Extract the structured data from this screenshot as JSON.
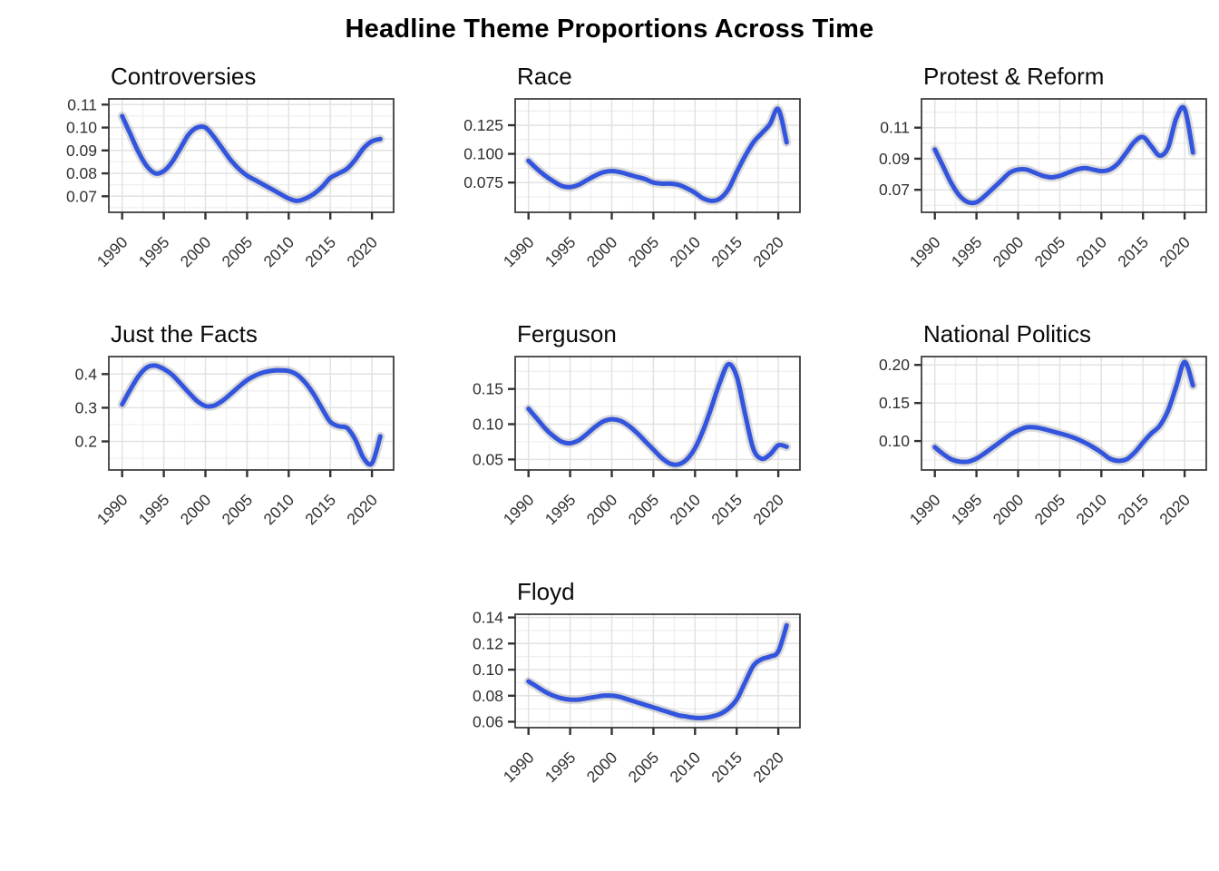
{
  "title": "Headline Theme Proportions Across Time",
  "style": {
    "line_color": "#3355DD",
    "ribbon_color": "#BDBDBD",
    "grid_major_color": "#E2E2E2",
    "grid_minor_color": "#EFEFEF",
    "panel_border_color": "#3F3F3F",
    "tick_color": "#333333",
    "axis_text_color": "#303030",
    "panel_background": "#FFFFFF"
  },
  "x_axis": {
    "years": [
      1990,
      1991,
      1992,
      1993,
      1994,
      1995,
      1996,
      1997,
      1998,
      1999,
      2000,
      2001,
      2002,
      2003,
      2004,
      2005,
      2006,
      2007,
      2008,
      2009,
      2010,
      2011,
      2012,
      2013,
      2014,
      2015,
      2016,
      2017,
      2018,
      2019,
      2020,
      2021
    ],
    "xlim": [
      1988.4,
      2022.6
    ],
    "xticks": [
      1990,
      1995,
      2000,
      2005,
      2010,
      2015,
      2020
    ],
    "xtick_labels": [
      "1990",
      "1995",
      "2000",
      "2005",
      "2010",
      "2015",
      "2020"
    ],
    "xminor": [
      1992.5,
      1997.5,
      2002.5,
      2007.5,
      2012.5,
      2017.5,
      2022.5
    ]
  },
  "chart_data": [
    {
      "id": "controversies",
      "type": "line",
      "title": "Controversies",
      "grid_row": 1,
      "grid_col": 1,
      "y": [
        0.105,
        0.097,
        0.089,
        0.083,
        0.08,
        0.081,
        0.085,
        0.091,
        0.097,
        0.1,
        0.1,
        0.096,
        0.091,
        0.086,
        0.082,
        0.079,
        0.077,
        0.075,
        0.073,
        0.071,
        0.069,
        0.068,
        0.069,
        0.071,
        0.074,
        0.078,
        0.08,
        0.082,
        0.086,
        0.091,
        0.094,
        0.095
      ],
      "ylim": [
        0.063,
        0.1125
      ],
      "yticks": [
        0.07,
        0.08,
        0.09,
        0.1,
        0.11
      ],
      "ytick_labels": [
        "0.07",
        "0.08",
        "0.09",
        "0.10",
        "0.11"
      ],
      "yminor": [
        0.065,
        0.075,
        0.085,
        0.095,
        0.105
      ]
    },
    {
      "id": "race",
      "type": "line",
      "title": "Race",
      "grid_row": 1,
      "grid_col": 2,
      "y": [
        0.094,
        0.087,
        0.081,
        0.076,
        0.072,
        0.071,
        0.073,
        0.077,
        0.081,
        0.084,
        0.085,
        0.084,
        0.082,
        0.08,
        0.078,
        0.075,
        0.074,
        0.074,
        0.073,
        0.07,
        0.066,
        0.061,
        0.059,
        0.061,
        0.069,
        0.084,
        0.098,
        0.11,
        0.118,
        0.126,
        0.139,
        0.11
      ],
      "ylim": [
        0.049,
        0.148
      ],
      "yticks": [
        0.075,
        0.1,
        0.125
      ],
      "ytick_labels": [
        "0.075",
        "0.100",
        "0.125"
      ],
      "yminor": [
        0.0625,
        0.0875,
        0.1125,
        0.1375
      ]
    },
    {
      "id": "protest-reform",
      "type": "line",
      "title": "Protest & Reform",
      "grid_row": 1,
      "grid_col": 3,
      "y": [
        0.096,
        0.085,
        0.074,
        0.066,
        0.062,
        0.062,
        0.066,
        0.071,
        0.076,
        0.081,
        0.083,
        0.083,
        0.081,
        0.079,
        0.078,
        0.079,
        0.081,
        0.083,
        0.084,
        0.083,
        0.082,
        0.083,
        0.087,
        0.094,
        0.101,
        0.104,
        0.098,
        0.092,
        0.097,
        0.116,
        0.122,
        0.094
      ],
      "ylim": [
        0.0555,
        0.1285
      ],
      "yticks": [
        0.07,
        0.09,
        0.11
      ],
      "ytick_labels": [
        "0.07",
        "0.09",
        "0.11"
      ],
      "yminor": [
        0.06,
        0.08,
        0.1,
        0.12
      ]
    },
    {
      "id": "just-the-facts",
      "type": "line",
      "title": "Just the Facts",
      "grid_row": 2,
      "grid_col": 1,
      "y": [
        0.31,
        0.355,
        0.395,
        0.42,
        0.425,
        0.415,
        0.398,
        0.372,
        0.345,
        0.32,
        0.305,
        0.306,
        0.32,
        0.34,
        0.362,
        0.382,
        0.396,
        0.405,
        0.41,
        0.411,
        0.409,
        0.398,
        0.374,
        0.34,
        0.298,
        0.258,
        0.245,
        0.24,
        0.205,
        0.15,
        0.135,
        0.215
      ],
      "ylim": [
        0.115,
        0.452
      ],
      "yticks": [
        0.2,
        0.3,
        0.4
      ],
      "ytick_labels": [
        "0.2",
        "0.3",
        "0.4"
      ],
      "yminor": [
        0.15,
        0.25,
        0.35,
        0.45
      ]
    },
    {
      "id": "ferguson",
      "type": "line",
      "title": "Ferguson",
      "grid_row": 2,
      "grid_col": 2,
      "y": [
        0.122,
        0.108,
        0.094,
        0.083,
        0.075,
        0.073,
        0.077,
        0.086,
        0.096,
        0.104,
        0.107,
        0.105,
        0.098,
        0.088,
        0.076,
        0.064,
        0.052,
        0.044,
        0.043,
        0.05,
        0.066,
        0.092,
        0.125,
        0.16,
        0.185,
        0.168,
        0.115,
        0.065,
        0.051,
        0.057,
        0.07,
        0.068
      ],
      "ylim": [
        0.035,
        0.196
      ],
      "yticks": [
        0.05,
        0.1,
        0.15
      ],
      "ytick_labels": [
        "0.05",
        "0.10",
        "0.15"
      ],
      "yminor": [
        0.075,
        0.125,
        0.175
      ]
    },
    {
      "id": "national-politics",
      "type": "line",
      "title": "National Politics",
      "grid_row": 2,
      "grid_col": 3,
      "y": [
        0.092,
        0.083,
        0.076,
        0.073,
        0.073,
        0.077,
        0.084,
        0.092,
        0.1,
        0.108,
        0.114,
        0.118,
        0.118,
        0.116,
        0.113,
        0.11,
        0.107,
        0.103,
        0.098,
        0.092,
        0.085,
        0.077,
        0.074,
        0.076,
        0.085,
        0.098,
        0.11,
        0.12,
        0.14,
        0.172,
        0.204,
        0.173
      ],
      "ylim": [
        0.062,
        0.211
      ],
      "yticks": [
        0.1,
        0.15,
        0.2
      ],
      "ytick_labels": [
        "0.10",
        "0.15",
        "0.20"
      ],
      "yminor": [
        0.075,
        0.125,
        0.175
      ]
    },
    {
      "id": "floyd",
      "type": "line",
      "title": "Floyd",
      "grid_row": 3,
      "grid_col": 2,
      "y": [
        0.091,
        0.087,
        0.083,
        0.08,
        0.078,
        0.077,
        0.077,
        0.078,
        0.079,
        0.08,
        0.08,
        0.079,
        0.077,
        0.075,
        0.073,
        0.071,
        0.069,
        0.067,
        0.065,
        0.064,
        0.063,
        0.063,
        0.064,
        0.066,
        0.07,
        0.077,
        0.09,
        0.103,
        0.108,
        0.11,
        0.114,
        0.134
      ],
      "ylim": [
        0.0555,
        0.1425
      ],
      "yticks": [
        0.06,
        0.08,
        0.1,
        0.12,
        0.14
      ],
      "ytick_labels": [
        "0.06",
        "0.08",
        "0.10",
        "0.12",
        "0.14"
      ],
      "yminor": [
        0.07,
        0.09,
        0.11,
        0.13
      ]
    }
  ]
}
